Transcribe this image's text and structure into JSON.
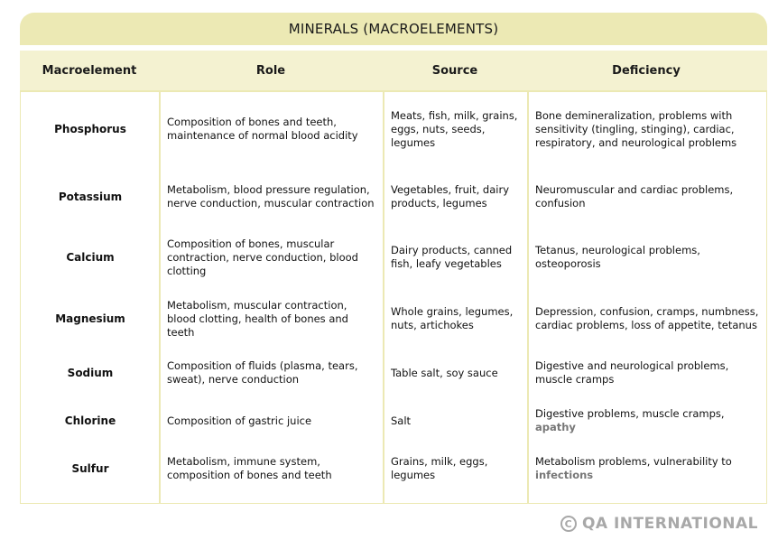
{
  "title": "MINERALS (MACROELEMENTS)",
  "columns": [
    "Macroelement",
    "Role",
    "Source",
    "Deficiency"
  ],
  "rows": [
    {
      "name": "Phosphorus",
      "role": "Composition of bones and teeth, maintenance of normal blood acidity",
      "source": "Meats, fish, milk, grains, eggs, nuts, seeds, legumes",
      "deficiency": "Bone demineralization, problems with sensitivity (tingling, stinging), cardiac, respiratory, and neurological problems"
    },
    {
      "name": "Potassium",
      "role": "Metabolism, blood pressure regulation, nerve conduction, muscular contraction",
      "source": "Vegetables, fruit, dairy products, legumes",
      "deficiency": "Neuromuscular and cardiac problems, confusion"
    },
    {
      "name": "Calcium",
      "role": "Composition of bones, muscular contraction, nerve conduction, blood clotting",
      "source": "Dairy products, canned fish, leafy vegetables",
      "deficiency": "Tetanus, neurological problems, osteoporosis"
    },
    {
      "name": "Magnesium",
      "role": "Metabolism, muscular contraction, blood clotting, health of bones and teeth",
      "source": "Whole grains, legumes, nuts, artichokes",
      "deficiency": "Depression, confusion, cramps, numbness, cardiac problems, loss of appetite, tetanus"
    },
    {
      "name": "Sodium",
      "role": "Composition of fluids (plasma, tears, sweat), nerve conduction",
      "source": "Table salt, soy sauce",
      "deficiency": "Digestive and neurological problems, muscle cramps"
    },
    {
      "name": "Chlorine",
      "role": "Composition of gastric juice",
      "source": "Salt",
      "deficiency": "Digestive problems, muscle cramps, ",
      "deficiency_link": "apathy"
    },
    {
      "name": "Sulfur",
      "role": "Metabolism, immune system, composition of bones and teeth",
      "source": "Grains, milk, eggs, legumes",
      "deficiency": "Metabolism problems, vulnerability to ",
      "deficiency_link": "infections"
    }
  ],
  "copyright": "QA INTERNATIONAL",
  "copyright_symbol": "C"
}
